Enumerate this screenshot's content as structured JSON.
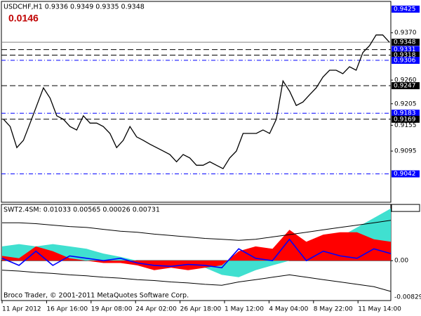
{
  "chart_data": [
    {
      "type": "line",
      "title": "USDCHF,H1  0.9336 0.9349 0.9335 0.9348",
      "annotation": "0.0146",
      "color": "#000000",
      "values": [
        0.9169,
        0.9152,
        0.9103,
        0.912,
        0.916,
        0.9201,
        0.9242,
        0.9218,
        0.9177,
        0.9169,
        0.9152,
        0.9144,
        0.9177,
        0.916,
        0.916,
        0.9152,
        0.9136,
        0.9103,
        0.912,
        0.9152,
        0.9128,
        0.912,
        0.9111,
        0.9103,
        0.9095,
        0.9087,
        0.907,
        0.9087,
        0.9079,
        0.9062,
        0.9062,
        0.907,
        0.9062,
        0.9054,
        0.9079,
        0.9095,
        0.9136,
        0.9136,
        0.9136,
        0.9144,
        0.9136,
        0.9169,
        0.9258,
        0.9234,
        0.9201,
        0.9209,
        0.9226,
        0.9242,
        0.9267,
        0.9283,
        0.9283,
        0.9275,
        0.9291,
        0.9283,
        0.9324,
        0.934,
        0.9365,
        0.9365,
        0.9348
      ],
      "ylim": [
        0.8976,
        0.9443
      ],
      "yticks": [
        {
          "value": 0.937,
          "label": "0.9370"
        },
        {
          "value": 0.926,
          "label": "0.9260"
        },
        0.9205,
        0.9155,
        0.9095
      ],
      "levels": [
        {
          "value": 0.9425,
          "line": "none",
          "color": "#0000ff",
          "label_bg": "#0000ff"
        },
        {
          "value": 0.9348,
          "line": "solid",
          "color": "#808080",
          "label_bg": "#000000"
        },
        {
          "value": 0.9331,
          "line": "dash",
          "color": "#000000",
          "label_bg": "#0000ff"
        },
        {
          "value": 0.9318,
          "line": "dash",
          "color": "#000000",
          "label_bg": "#000000"
        },
        {
          "value": 0.9306,
          "line": "dashdot",
          "color": "#0000ff",
          "label_bg": "#0000ff"
        },
        {
          "value": 0.9247,
          "line": "dash",
          "color": "#000000",
          "label_bg": "#000000"
        },
        {
          "value": 0.9183,
          "line": "dashdot",
          "color": "#0000ff",
          "label_bg": "#0000ff"
        },
        {
          "value": 0.9169,
          "line": "dash",
          "color": "#000000",
          "label_bg": "#000000"
        },
        {
          "value": 0.9042,
          "line": "dashdot",
          "color": "#0000ff",
          "label_bg": "#0000ff"
        }
      ]
    },
    {
      "type": "area",
      "title": "SWT2.4SM: 0.01033 0.00565 0.00026 0.00731",
      "series": [
        {
          "kind": "area",
          "color": "#40e0d0",
          "values": [
            0.03,
            0.035,
            0.03,
            0.035,
            0.03,
            0.025,
            0.015,
            0.008,
            0.0,
            -0.005,
            -0.005,
            -0.01,
            -0.015,
            -0.03,
            -0.035,
            -0.02,
            -0.01,
            0.0,
            0.01,
            0.03,
            0.05,
            0.07,
            0.09,
            0.11
          ]
        },
        {
          "kind": "area",
          "color": "#ff0000",
          "values": [
            0.01,
            0.005,
            0.03,
            0.02,
            0.005,
            0.0,
            -0.005,
            -0.005,
            -0.01,
            -0.02,
            -0.015,
            -0.02,
            -0.015,
            -0.01,
            0.02,
            0.03,
            0.025,
            0.065,
            0.04,
            0.055,
            0.06,
            0.06,
            0.045,
            0.04
          ]
        },
        {
          "kind": "line",
          "color": "#0000ff",
          "values": [
            0.005,
            -0.01,
            0.02,
            -0.01,
            0.01,
            0.005,
            0.0,
            0.005,
            -0.005,
            -0.01,
            -0.012,
            -0.008,
            -0.01,
            -0.015,
            0.025,
            0.005,
            0.0,
            0.045,
            0.0,
            0.02,
            0.01,
            0.005,
            0.025,
            0.015
          ]
        },
        {
          "kind": "line",
          "color": "#000000",
          "values": [
            0.08,
            0.08,
            0.078,
            0.075,
            0.072,
            0.07,
            0.066,
            0.062,
            0.06,
            0.056,
            0.053,
            0.05,
            0.047,
            0.045,
            0.043,
            0.045,
            0.05,
            0.055,
            0.06,
            0.065,
            0.07,
            0.075,
            0.08,
            0.085
          ]
        },
        {
          "kind": "line",
          "color": "#000000",
          "values": [
            -0.02,
            -0.022,
            -0.025,
            -0.027,
            -0.03,
            -0.032,
            -0.035,
            -0.037,
            -0.04,
            -0.042,
            -0.045,
            -0.047,
            -0.05,
            -0.052,
            -0.045,
            -0.04,
            -0.035,
            -0.03,
            -0.035,
            -0.04,
            -0.045,
            -0.05,
            -0.055,
            -0.065
          ]
        }
      ],
      "ylim": [
        -0.0842,
        0.1188
      ],
      "yticks": [
        {
          "value": 0.11121,
          "label": "0.11121"
        },
        {
          "value": 0,
          "label": "0.00"
        }
      ],
      "min_label": "-0.00829"
    }
  ],
  "time_axis": [
    "11 Apr 2012",
    "16 Apr 16:00",
    "19 Apr 08:00",
    "24 Apr 02:00",
    "26 Apr 18:00",
    "1 May 12:00",
    "4 May 04:00",
    "8 May 22:00",
    "11 May 14:00"
  ],
  "copyright": "Broco Trader, © 2001-2011 MetaQuotes Software Corp."
}
